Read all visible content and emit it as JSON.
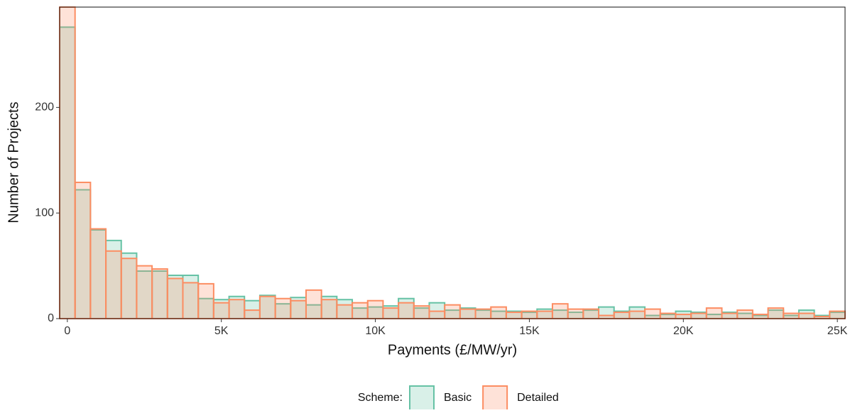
{
  "chart_data": {
    "type": "histogram",
    "x_label": "Payments (£/MW/yr)",
    "y_label": "Number of Projects",
    "legend_title": "Scheme:",
    "legend_position": "bottom",
    "bins": [
      -250,
      250,
      750,
      1250,
      1750,
      2250,
      2750,
      3250,
      3750,
      4250,
      4750,
      5250,
      5750,
      6250,
      6750,
      7250,
      7750,
      8250,
      8750,
      9250,
      9750,
      10250,
      10750,
      11250,
      11750,
      12250,
      12750,
      13250,
      13750,
      14250,
      14750,
      15250,
      15750,
      16250,
      16750,
      17250,
      17750,
      18250,
      18750,
      19250,
      19750,
      20250,
      20750,
      21250,
      21750,
      22250,
      22750,
      23250,
      23750,
      24250,
      24750,
      25250
    ],
    "series": [
      {
        "name": "Basic",
        "color": "#66c2a5",
        "values": [
          276,
          122,
          84,
          74,
          62,
          45,
          45,
          41,
          41,
          19,
          18,
          21,
          17,
          22,
          14,
          20,
          13,
          21,
          18,
          10,
          11,
          12,
          19,
          10,
          15,
          8,
          10,
          8,
          7,
          7,
          6,
          9,
          8,
          6,
          8,
          11,
          7,
          11,
          3,
          4,
          7,
          6,
          4,
          6,
          5,
          3,
          8,
          3,
          8,
          3,
          6
        ]
      },
      {
        "name": "Detailed",
        "color": "#fc8d62",
        "values": [
          295,
          129,
          85,
          64,
          57,
          50,
          47,
          38,
          34,
          33,
          15,
          18,
          8,
          21,
          19,
          17,
          27,
          18,
          13,
          15,
          17,
          10,
          15,
          12,
          7,
          13,
          9,
          9,
          11,
          6,
          7,
          7,
          14,
          9,
          9,
          3,
          6,
          7,
          9,
          5,
          4,
          5,
          10,
          5,
          8,
          4,
          10,
          5,
          5,
          2,
          7
        ]
      }
    ],
    "xlim": [
      -250,
      25250
    ],
    "ylim": [
      0,
      295
    ],
    "xticks": [
      0,
      {
        "value": 5000,
        "label": "5K"
      },
      {
        "value": 10000,
        "label": "10K"
      },
      {
        "value": 15000,
        "label": "15K"
      },
      {
        "value": 20000,
        "label": "20K"
      },
      {
        "value": 25000,
        "label": "25K"
      }
    ],
    "yticks": [
      0,
      100,
      200
    ],
    "grid": false
  }
}
